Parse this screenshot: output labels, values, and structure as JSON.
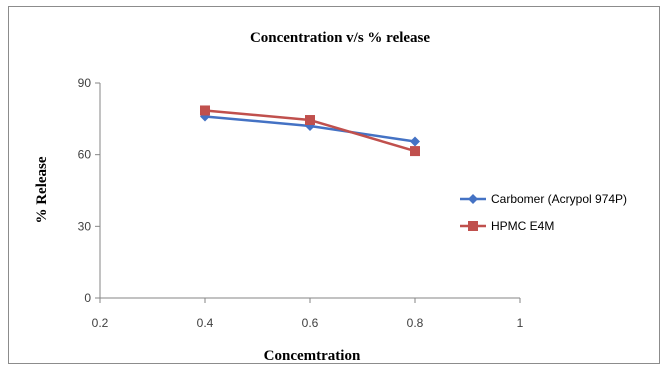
{
  "chart_data": {
    "type": "line",
    "title": "Concentration v/s % release",
    "xlabel": "Concemtration",
    "ylabel": "% Release",
    "xlim": [
      0.2,
      1
    ],
    "ylim": [
      0,
      90
    ],
    "x_ticks": [
      "0.2",
      "0.4",
      "0.6",
      "0.8",
      "1"
    ],
    "y_ticks": [
      "0",
      "30",
      "60",
      "90"
    ],
    "grid": false,
    "legend_position": "right",
    "series": [
      {
        "name": "Carbomer (Acrypol 974P)",
        "color": "#4472C4",
        "marker": "diamond",
        "x": [
          0.4,
          0.6,
          0.8
        ],
        "y": [
          76,
          72,
          65.5
        ]
      },
      {
        "name": "HPMC E4M",
        "color": "#C0504D",
        "marker": "square",
        "x": [
          0.4,
          0.6,
          0.8
        ],
        "y": [
          78.5,
          74.5,
          61.5
        ]
      }
    ]
  }
}
